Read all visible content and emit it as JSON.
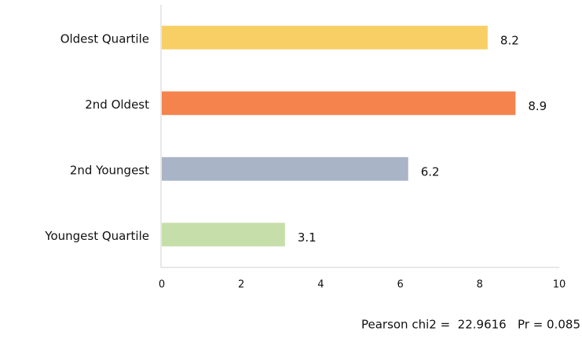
{
  "chart_data": {
    "type": "hbar",
    "categories": [
      "Oldest Quartile",
      "2nd Oldest",
      "2nd Youngest",
      "Youngest Quartile"
    ],
    "values": [
      8.2,
      8.9,
      6.2,
      3.1
    ],
    "colors": [
      "#f7cf65",
      "#f4834e",
      "#a9b4c6",
      "#c6dfaa"
    ],
    "xlim": [
      0,
      10
    ],
    "xticks": [
      0,
      2,
      4,
      6,
      8,
      10
    ],
    "annotation": "Pearson chi2 =  22.9616   Pr = 0.085"
  }
}
